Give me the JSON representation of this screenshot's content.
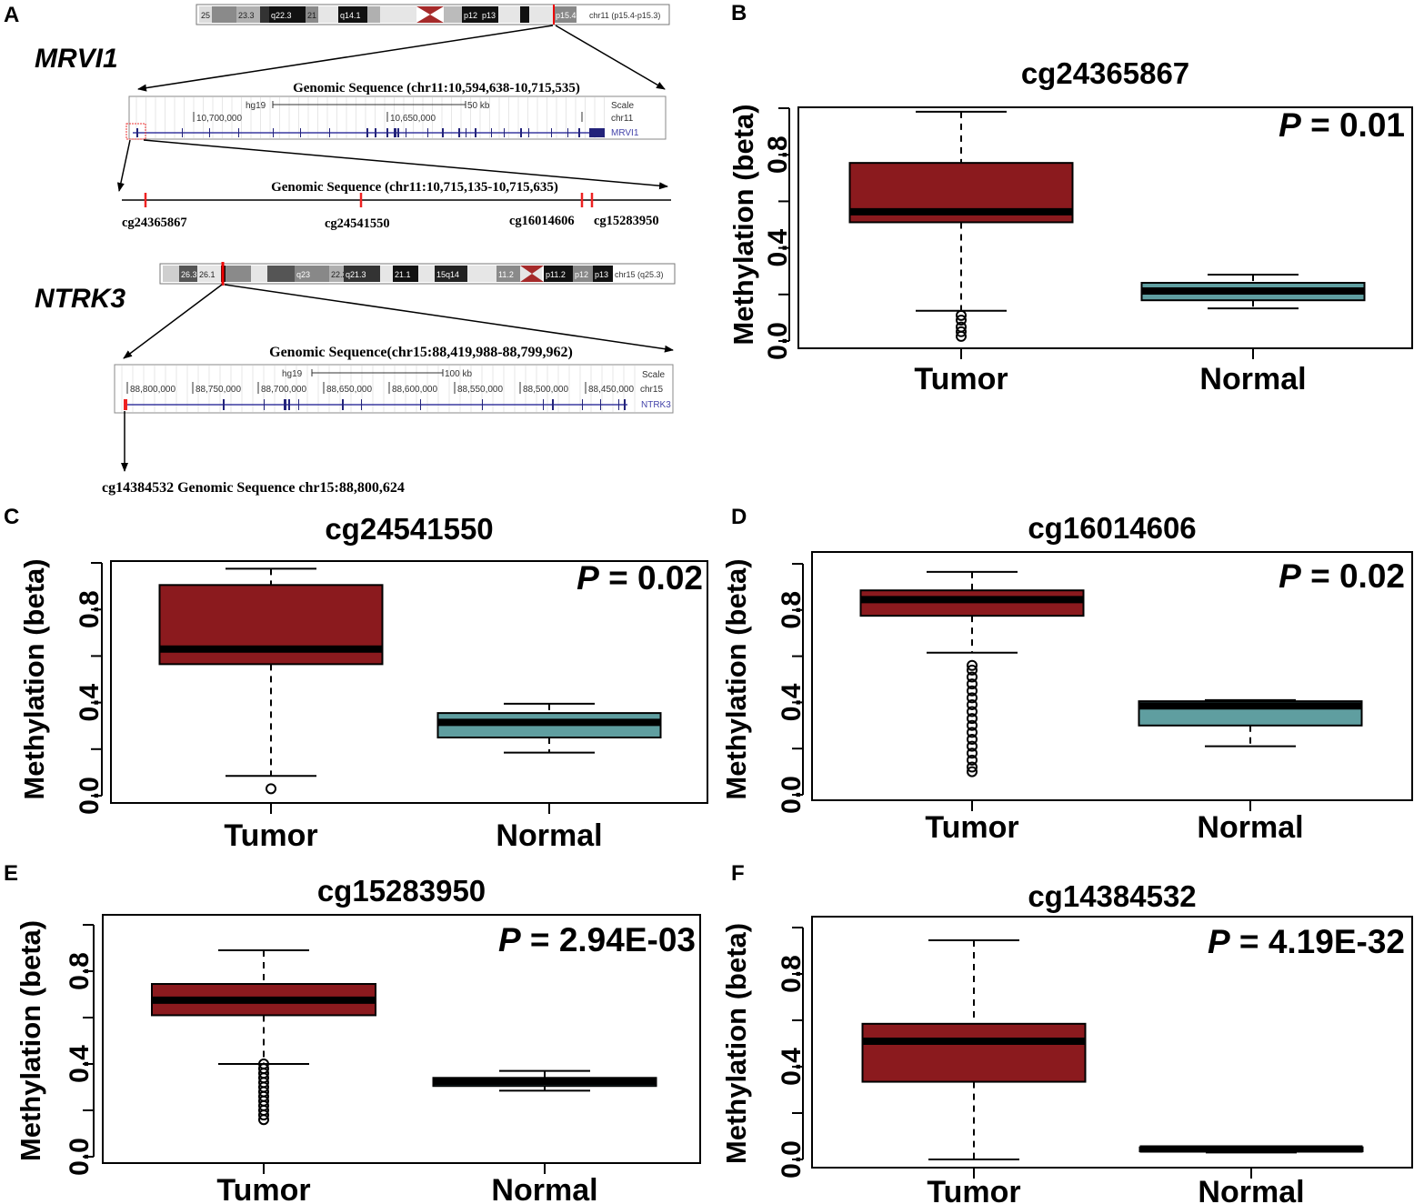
{
  "panel_a": {
    "label": "A",
    "mrvi1": {
      "gene": "MRVI1",
      "ideogram_bands": [
        "25",
        "23.3",
        "q22.3",
        "21",
        "q14.1",
        "p12",
        "p13",
        "p15.4"
      ],
      "ideogram_label": "chr11 (p15.4-p15.3)",
      "genomic_title": "Genomic Sequence (chr11:10,594,638-10,715,535)",
      "track": {
        "assembly": "hg19",
        "scale_text": "50 kb",
        "scale_label": "Scale",
        "chrom_label": "chr11",
        "pos1": "10,700,000",
        "pos2": "10,650,000",
        "gene_label": "MRVI1"
      },
      "zoom_title": "Genomic Sequence (chr11:10,715,135-10,715,635)",
      "cpg_sites": [
        "cg24365867",
        "cg24541550",
        "cg16014606",
        "cg15283950"
      ]
    },
    "ntrk3": {
      "gene": "NTRK3",
      "ideogram_bands": [
        "26.3",
        "26.1",
        "q23",
        "22.2",
        "q21.3",
        "21.1",
        "15q14",
        "11.2",
        "p11.2",
        "p12",
        "p13"
      ],
      "ideogram_label": "chr15 (q25.3)",
      "genomic_title": "Genomic Sequence(chr15:88,419,988-88,799,962)",
      "track": {
        "assembly": "hg19",
        "scale_text": "100 kb",
        "scale_label": "Scale",
        "chrom_label": "chr15",
        "positions": [
          "88,800,000",
          "88,750,000",
          "88,700,000",
          "88,650,000",
          "88,600,000",
          "88,550,000",
          "88,500,000",
          "88,450,000"
        ],
        "gene_label": "NTRK3"
      },
      "site_text": "cg14384532 Genomic Sequence chr15:88,800,624"
    }
  },
  "colors": {
    "tumor": "#8b1a1e",
    "normal": "#5f9ea0",
    "axis": "#000000"
  },
  "chart_data": [
    {
      "panel": "B",
      "type": "box",
      "title": "cg24365867",
      "ylabel": "Methylation (beta)",
      "yticks": [
        "0.0",
        "0.4",
        "0.8"
      ],
      "ylim": [
        0,
        1
      ],
      "p_prefix": "P",
      "p_text": " = 0.01",
      "categories": [
        "Tumor",
        "Normal"
      ],
      "boxes": [
        {
          "category": "Tumor",
          "q1": 0.51,
          "median": 0.555,
          "q3": 0.765,
          "whisker_low": 0.13,
          "whisker_high": 0.985,
          "outliers": [
            0.02,
            0.04,
            0.06,
            0.09,
            0.11
          ]
        },
        {
          "category": "Normal",
          "q1": 0.175,
          "median": 0.215,
          "q3": 0.25,
          "whisker_low": 0.14,
          "whisker_high": 0.285,
          "outliers": []
        }
      ]
    },
    {
      "panel": "C",
      "type": "box",
      "title": "cg24541550",
      "ylabel": "Methylation (beta)",
      "yticks": [
        "0.0",
        "0.4",
        "0.8"
      ],
      "ylim": [
        0,
        1
      ],
      "p_prefix": "P",
      "p_text": " = 0.02",
      "categories": [
        "Tumor",
        "Normal"
      ],
      "boxes": [
        {
          "category": "Tumor",
          "q1": 0.565,
          "median": 0.63,
          "q3": 0.905,
          "whisker_low": 0.085,
          "whisker_high": 0.975,
          "outliers": [
            0.03
          ]
        },
        {
          "category": "Normal",
          "q1": 0.25,
          "median": 0.315,
          "q3": 0.355,
          "whisker_low": 0.185,
          "whisker_high": 0.395,
          "outliers": []
        }
      ]
    },
    {
      "panel": "D",
      "type": "box",
      "title": "cg16014606",
      "ylabel": "Methylation (beta)",
      "yticks": [
        "0.0",
        "0.4",
        "0.8"
      ],
      "ylim": [
        0,
        1
      ],
      "p_prefix": "P",
      "p_text": " = 0.02",
      "categories": [
        "Tumor",
        "Normal"
      ],
      "boxes": [
        {
          "category": "Tumor",
          "q1": 0.775,
          "median": 0.845,
          "q3": 0.885,
          "whisker_low": 0.615,
          "whisker_high": 0.965,
          "outliers": [
            0.1,
            0.12,
            0.15,
            0.18,
            0.21,
            0.24,
            0.27,
            0.3,
            0.33,
            0.36,
            0.39,
            0.42,
            0.45,
            0.48,
            0.51,
            0.54,
            0.56
          ]
        },
        {
          "category": "Normal",
          "q1": 0.3,
          "median": 0.385,
          "q3": 0.405,
          "whisker_low": 0.21,
          "whisker_high": 0.41,
          "outliers": []
        }
      ]
    },
    {
      "panel": "E",
      "type": "box",
      "title": "cg15283950",
      "ylabel": "Methylation (beta)",
      "yticks": [
        "0.0",
        "0.4",
        "0.8"
      ],
      "ylim": [
        0,
        1
      ],
      "p_prefix": "P",
      "p_text": " = 2.94E-03",
      "categories": [
        "Tumor",
        "Normal"
      ],
      "boxes": [
        {
          "category": "Tumor",
          "q1": 0.61,
          "median": 0.675,
          "q3": 0.745,
          "whisker_low": 0.4,
          "whisker_high": 0.89,
          "outliers": [
            0.16,
            0.18,
            0.2,
            0.22,
            0.24,
            0.26,
            0.28,
            0.3,
            0.32,
            0.34,
            0.36,
            0.38,
            0.4
          ]
        },
        {
          "category": "Normal",
          "q1": 0.305,
          "median": 0.325,
          "q3": 0.34,
          "whisker_low": 0.285,
          "whisker_high": 0.37,
          "outliers": []
        }
      ]
    },
    {
      "panel": "F",
      "type": "box",
      "title": "cg14384532",
      "ylabel": "Methylation (beta)",
      "yticks": [
        "0.0",
        "0.4",
        "0.8"
      ],
      "ylim": [
        0,
        1
      ],
      "p_prefix": "P",
      "p_text": " = 4.19E-32",
      "categories": [
        "Tumor",
        "Normal"
      ],
      "boxes": [
        {
          "category": "Tumor",
          "q1": 0.335,
          "median": 0.51,
          "q3": 0.585,
          "whisker_low": 0.0,
          "whisker_high": 0.945,
          "outliers": []
        },
        {
          "category": "Normal",
          "q1": 0.035,
          "median": 0.045,
          "q3": 0.052,
          "whisker_low": 0.03,
          "whisker_high": 0.055,
          "outliers": []
        }
      ]
    }
  ]
}
